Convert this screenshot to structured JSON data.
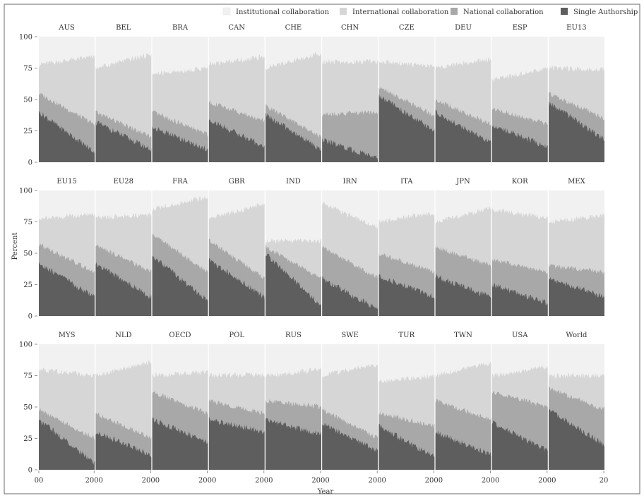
{
  "chart_data": {
    "type": "area",
    "stacked": true,
    "facet_grid": {
      "rows": 3,
      "cols": 10
    },
    "xlabel": "Year",
    "ylabel": "Percent",
    "ylim": [
      0,
      100
    ],
    "y_ticks": [
      0,
      25,
      50,
      75,
      100
    ],
    "x_ticks_shown": [
      "00",
      "2000",
      "2000",
      "2000",
      "2000",
      "2000",
      "2000",
      "2000",
      "2000",
      "2000",
      "20"
    ],
    "grid": false,
    "legend_position": "top",
    "colors": {
      "Institutional collaboration": "#f1f1f1",
      "International collaboration": "#d6d6d6",
      "National collaboration": "#a8a8a8",
      "Single Authorship": "#5e5e5e",
      "background": "#ffffff"
    },
    "layers": [
      "Institutional collaboration",
      "International collaboration",
      "National collaboration",
      "Single Authorship"
    ],
    "note": "",
    "panels": [
      {
        "name": "AUS",
        "single": [
          40,
          8
        ],
        "national": [
          55,
          30
        ],
        "international": [
          78,
          84
        ],
        "institutional": [
          100,
          100
        ]
      },
      {
        "name": "BEL",
        "single": [
          32,
          10
        ],
        "national": [
          40,
          20
        ],
        "international": [
          75,
          86
        ],
        "institutional": [
          100,
          100
        ]
      },
      {
        "name": "BRA",
        "single": [
          28,
          10
        ],
        "national": [
          40,
          22
        ],
        "international": [
          70,
          75
        ],
        "institutional": [
          100,
          100
        ]
      },
      {
        "name": "CAN",
        "single": [
          34,
          12
        ],
        "national": [
          48,
          33
        ],
        "international": [
          78,
          84
        ],
        "institutional": [
          100,
          100
        ]
      },
      {
        "name": "CHE",
        "single": [
          38,
          10
        ],
        "national": [
          45,
          20
        ],
        "international": [
          75,
          87
        ],
        "institutional": [
          100,
          100
        ]
      },
      {
        "name": "CHN",
        "single": [
          18,
          3
        ],
        "national": [
          38,
          40
        ],
        "international": [
          80,
          80
        ],
        "institutional": [
          100,
          100
        ]
      },
      {
        "name": "CZE",
        "single": [
          53,
          25
        ],
        "national": [
          60,
          37
        ],
        "international": [
          80,
          76
        ],
        "institutional": [
          100,
          100
        ]
      },
      {
        "name": "DEU",
        "single": [
          40,
          15
        ],
        "national": [
          50,
          30
        ],
        "international": [
          75,
          82
        ],
        "institutional": [
          100,
          100
        ]
      },
      {
        "name": "ESP",
        "single": [
          30,
          12
        ],
        "national": [
          43,
          30
        ],
        "international": [
          65,
          75
        ],
        "institutional": [
          100,
          100
        ]
      },
      {
        "name": "EU13",
        "single": [
          48,
          18
        ],
        "national": [
          55,
          35
        ],
        "international": [
          75,
          74
        ],
        "institutional": [
          100,
          100
        ]
      },
      {
        "name": "EU15",
        "single": [
          42,
          15
        ],
        "national": [
          57,
          35
        ],
        "international": [
          78,
          81
        ],
        "institutional": [
          100,
          100
        ]
      },
      {
        "name": "EU28",
        "single": [
          42,
          15
        ],
        "national": [
          57,
          35
        ],
        "international": [
          78,
          81
        ],
        "institutional": [
          100,
          100
        ]
      },
      {
        "name": "FRA",
        "single": [
          48,
          12
        ],
        "national": [
          65,
          35
        ],
        "international": [
          85,
          95
        ],
        "institutional": [
          100,
          100
        ]
      },
      {
        "name": "GBR",
        "single": [
          45,
          15
        ],
        "national": [
          60,
          30
        ],
        "international": [
          78,
          89
        ],
        "institutional": [
          100,
          100
        ]
      },
      {
        "name": "IND",
        "single": [
          50,
          8
        ],
        "national": [
          55,
          30
        ],
        "international": [
          60,
          60
        ],
        "institutional": [
          100,
          100
        ]
      },
      {
        "name": "IRN",
        "single": [
          30,
          5
        ],
        "national": [
          55,
          30
        ],
        "international": [
          90,
          70
        ],
        "institutional": [
          100,
          100
        ]
      },
      {
        "name": "ITA",
        "single": [
          32,
          15
        ],
        "national": [
          50,
          35
        ],
        "international": [
          75,
          82
        ],
        "institutional": [
          100,
          100
        ]
      },
      {
        "name": "JPN",
        "single": [
          32,
          15
        ],
        "national": [
          55,
          40
        ],
        "international": [
          75,
          86
        ],
        "institutional": [
          100,
          100
        ]
      },
      {
        "name": "KOR",
        "single": [
          25,
          10
        ],
        "national": [
          45,
          35
        ],
        "international": [
          85,
          78
        ],
        "institutional": [
          100,
          100
        ]
      },
      {
        "name": "MEX",
        "single": [
          30,
          15
        ],
        "national": [
          40,
          35
        ],
        "international": [
          75,
          80
        ],
        "institutional": [
          100,
          100
        ]
      },
      {
        "name": "MYS",
        "single": [
          40,
          5
        ],
        "national": [
          48,
          25
        ],
        "international": [
          80,
          75
        ],
        "institutional": [
          100,
          100
        ]
      },
      {
        "name": "NLD",
        "single": [
          30,
          12
        ],
        "national": [
          45,
          25
        ],
        "international": [
          75,
          86
        ],
        "institutional": [
          100,
          100
        ]
      },
      {
        "name": "OECD",
        "single": [
          40,
          22
        ],
        "national": [
          62,
          45
        ],
        "international": [
          75,
          78
        ],
        "institutional": [
          100,
          100
        ]
      },
      {
        "name": "POL",
        "single": [
          40,
          30
        ],
        "national": [
          55,
          45
        ],
        "international": [
          75,
          76
        ],
        "institutional": [
          100,
          100
        ]
      },
      {
        "name": "RUS",
        "single": [
          40,
          28
        ],
        "national": [
          55,
          50
        ],
        "international": [
          75,
          80
        ],
        "institutional": [
          100,
          100
        ]
      },
      {
        "name": "SWE",
        "single": [
          37,
          15
        ],
        "national": [
          48,
          25
        ],
        "international": [
          75,
          84
        ],
        "institutional": [
          100,
          100
        ]
      },
      {
        "name": "TUR",
        "single": [
          35,
          10
        ],
        "national": [
          45,
          35
        ],
        "international": [
          70,
          75
        ],
        "institutional": [
          100,
          100
        ]
      },
      {
        "name": "TWN",
        "single": [
          30,
          12
        ],
        "national": [
          55,
          40
        ],
        "international": [
          75,
          85
        ],
        "institutional": [
          100,
          100
        ]
      },
      {
        "name": "USA",
        "single": [
          38,
          15
        ],
        "national": [
          62,
          50
        ],
        "international": [
          75,
          82
        ],
        "institutional": [
          100,
          100
        ]
      },
      {
        "name": "World",
        "single": [
          48,
          20
        ],
        "national": [
          65,
          48
        ],
        "international": [
          75,
          75
        ],
        "institutional": [
          100,
          100
        ]
      }
    ]
  }
}
